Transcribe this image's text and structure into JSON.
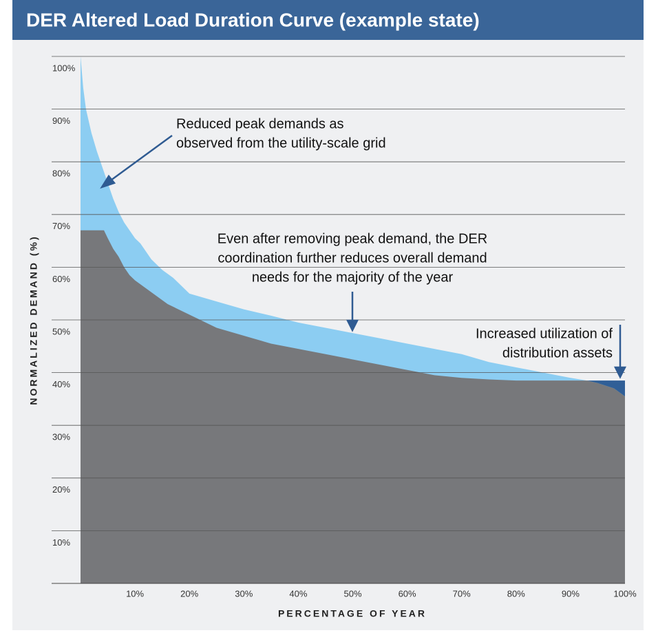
{
  "chart_data": {
    "type": "area",
    "title": "DER Altered Load Duration Curve (example state)",
    "xlabel": "PERCENTAGE OF YEAR",
    "ylabel": "NORMALIZED DEMAND (%)",
    "xlim": [
      0,
      100
    ],
    "ylim": [
      0,
      100
    ],
    "xticks": [
      {
        "value": 10,
        "label": "10%"
      },
      {
        "value": 20,
        "label": "20%"
      },
      {
        "value": 30,
        "label": "30%"
      },
      {
        "value": 40,
        "label": "40%"
      },
      {
        "value": 50,
        "label": "50%"
      },
      {
        "value": 60,
        "label": "60%"
      },
      {
        "value": 70,
        "label": "70%"
      },
      {
        "value": 80,
        "label": "80%"
      },
      {
        "value": 90,
        "label": "90%"
      },
      {
        "value": 100,
        "label": "100%"
      }
    ],
    "yticks": [
      {
        "value": 10,
        "label": "10%"
      },
      {
        "value": 20,
        "label": "20%"
      },
      {
        "value": 30,
        "label": "30%"
      },
      {
        "value": 40,
        "label": "40%"
      },
      {
        "value": 50,
        "label": "50%"
      },
      {
        "value": 60,
        "label": "60%"
      },
      {
        "value": 70,
        "label": "70%"
      },
      {
        "value": 80,
        "label": "80%"
      },
      {
        "value": 90,
        "label": "90%"
      },
      {
        "value": 100,
        "label": "100%"
      }
    ],
    "grid": true,
    "excess_color": "#305f97",
    "series": [
      {
        "color": "#8ccdf2",
        "x": [
          0,
          0.5,
          1,
          2,
          3,
          4,
          5,
          6,
          7,
          8,
          9,
          10,
          11,
          12,
          13,
          15,
          17,
          20,
          25,
          30,
          35,
          40,
          45,
          50,
          55,
          60,
          65,
          70,
          75,
          80,
          85,
          90,
          93,
          95,
          98,
          100
        ],
        "values": [
          100,
          94,
          90,
          85.5,
          82,
          79,
          76,
          73,
          70.5,
          68.5,
          67,
          65.5,
          64.5,
          63,
          61.5,
          59.5,
          58,
          55,
          53.5,
          52,
          50.8,
          49.5,
          48.5,
          47.5,
          46.5,
          45.5,
          44.5,
          43.5,
          42,
          41,
          40,
          39,
          38.5,
          38,
          37,
          35.5
        ]
      },
      {
        "color": "#77787b",
        "x": [
          0,
          4.3,
          5,
          6,
          7,
          8,
          9,
          10,
          12,
          14,
          16,
          20,
          25,
          30,
          35,
          40,
          45,
          50,
          55,
          60,
          65,
          70,
          75,
          80,
          100
        ],
        "values": [
          67,
          67,
          65.5,
          63.5,
          62,
          60,
          58.5,
          57.5,
          56,
          54.5,
          53,
          51,
          48.5,
          47,
          45.5,
          44.5,
          43.5,
          42.5,
          41.5,
          40.5,
          39.5,
          39,
          38.7,
          38.5,
          38.5
        ]
      }
    ],
    "annotations": [
      {
        "lines": [
          "Reduced peak demands as",
          "observed from the utility-scale grid"
        ]
      },
      {
        "lines": [
          "Even after removing peak demand, the DER",
          "coordination further reduces overall demand",
          "needs for the majority of the year"
        ]
      },
      {
        "lines": [
          "Increased utilization of",
          "distribution assets"
        ]
      }
    ]
  }
}
